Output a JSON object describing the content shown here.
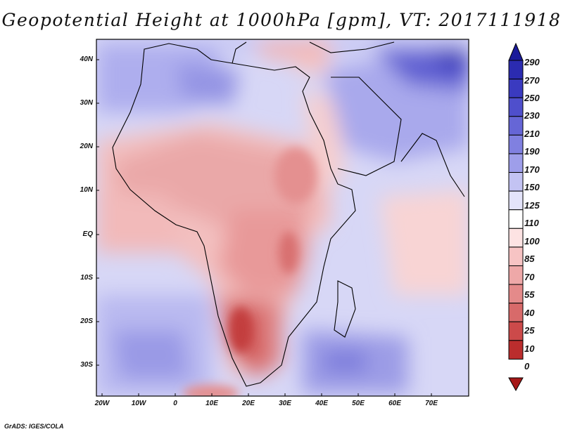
{
  "title": "Geopotential Height at 1000hPa [gpm], VT: 2017111918",
  "credit": "GrADS: IGES/COLA",
  "axes": {
    "y_labels": [
      "40N",
      "30N",
      "20N",
      "10N",
      "EQ",
      "10S",
      "20S",
      "30S"
    ],
    "x_labels": [
      "20W",
      "10W",
      "0",
      "10E",
      "20E",
      "30E",
      "40E",
      "50E",
      "60E",
      "70E"
    ]
  },
  "colorbar": {
    "levels": [
      "290",
      "270",
      "250",
      "230",
      "210",
      "190",
      "170",
      "150",
      "125",
      "110",
      "100",
      "85",
      "70",
      "55",
      "40",
      "25",
      "10",
      "0"
    ],
    "colors": [
      "#1a1a9a",
      "#2b2bb0",
      "#3a3ac0",
      "#4f4fcc",
      "#6666d6",
      "#8080e0",
      "#9e9eea",
      "#c3c3f3",
      "#e4e4fa",
      "#ffffff",
      "#fde3e3",
      "#f7c4c4",
      "#eea8a8",
      "#e48a8a",
      "#d86a6a",
      "#cc4a4a",
      "#bb2d2d",
      "#a61818"
    ]
  },
  "map": {
    "projection": "lat-lon",
    "lon_range": [
      -22,
      80
    ],
    "lat_range": [
      -37,
      45
    ]
  }
}
